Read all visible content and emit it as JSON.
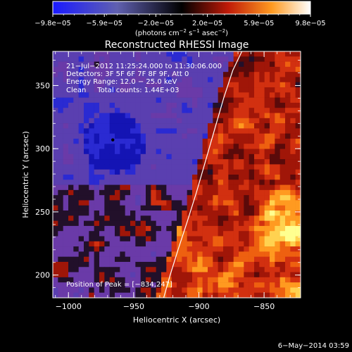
{
  "chart_data": {
    "type": "heatmap",
    "title": "Reconstructed RHESSI Image",
    "xlabel": "Heliocentric X (arcsec)",
    "ylabel": "Heliocentric Y (arcsec)",
    "xlim": [
      -1012,
      -822
    ],
    "ylim": [
      182,
      377
    ],
    "x_ticks": [
      -1000,
      -950,
      -900,
      -850
    ],
    "x_tick_labels": [
      "−1000",
      "−950",
      "−900",
      "−850"
    ],
    "y_ticks": [
      200,
      250,
      300,
      350
    ],
    "y_tick_labels": [
      "200",
      "250",
      "300",
      "350"
    ],
    "colorbar": {
      "range": [
        -9.8e-05,
        9.8e-05
      ],
      "tick_labels": [
        "−9.8e−05",
        "−5.9e−05",
        "−2.0e−05",
        "2.0e−05",
        "5.9e−05",
        "9.8e−05"
      ],
      "unit_label": "(photons cm",
      "unit_exp1": "−2",
      "unit_mid": " s",
      "unit_exp2": "−1",
      "unit_mid2": " asec",
      "unit_exp3": "−2",
      "unit_end": ")"
    },
    "annotations": [
      "21−Jul−2012 11:25:24.000 to 11:30:06.000",
      "Detectors: 3F 5F 6F 7F 8F 9F, Att 0",
      "Energy Range: 12.0 − 25.0 keV",
      "Clean     Total counts: 1.44E+03"
    ],
    "peak_label": "Position of Peak = [−834,247]",
    "peak": [
      -834,
      247
    ],
    "min_marker": [
      -966,
      307
    ],
    "limb_curve": {
      "x": [
        -927,
        -922,
        -916,
        -909,
        -902,
        -895,
        -888,
        -881,
        -874,
        -867
      ],
      "y": [
        182,
        200,
        220,
        242,
        265,
        290,
        315,
        340,
        362,
        377
      ]
    },
    "color_levels": [
      "#1414b4",
      "#2a2ad2",
      "#4a4acf",
      "#5a3fb0",
      "#6a3aa8",
      "#22102a",
      "#5a0a0a",
      "#a01608",
      "#d23010",
      "#ee6010",
      "#ff9a20",
      "#ffd250",
      "#ffff90"
    ],
    "grid": false
  },
  "footer_date": "6−May−2014 03:59"
}
